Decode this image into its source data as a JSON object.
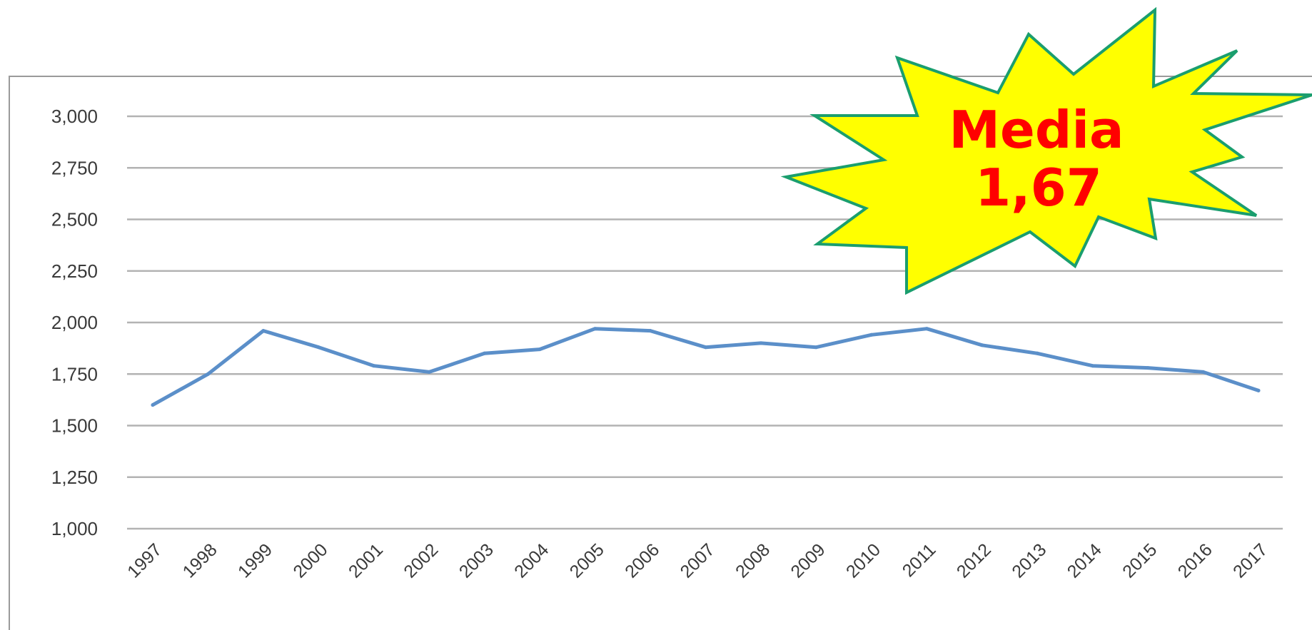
{
  "chart_data": {
    "type": "line",
    "title": "",
    "xlabel": "",
    "ylabel": "",
    "categories": [
      "1997",
      "1998",
      "1999",
      "2000",
      "2001",
      "2002",
      "2003",
      "2004",
      "2005",
      "2006",
      "2007",
      "2008",
      "2009",
      "2010",
      "2011",
      "2012",
      "2013",
      "2014",
      "2015",
      "2016",
      "2017"
    ],
    "series": [
      {
        "values": [
          1.6,
          1.75,
          1.96,
          1.88,
          1.79,
          1.76,
          1.85,
          1.87,
          1.97,
          1.96,
          1.88,
          1.9,
          1.88,
          1.94,
          1.97,
          1.89,
          1.85,
          1.79,
          1.78,
          1.76,
          1.67
        ],
        "color": "#5b8fc9"
      }
    ],
    "yticks": [
      "1,000",
      "1,250",
      "1,500",
      "1,750",
      "2,000",
      "2,250",
      "2,500",
      "2,750",
      "3,000"
    ],
    "ylim": [
      1.0,
      3.0
    ],
    "grid": true,
    "legend": "none"
  },
  "annotation": {
    "shape": "starburst",
    "line1": "Media",
    "line2": "1,67",
    "fill_color": "#ffff00",
    "stroke_color": "#1a9e6e",
    "text_color": "#ff0000"
  },
  "colors": {
    "gridline": "#b3b3b3",
    "frame": "#9a9a9a",
    "tick_text": "#3a3a3a"
  }
}
